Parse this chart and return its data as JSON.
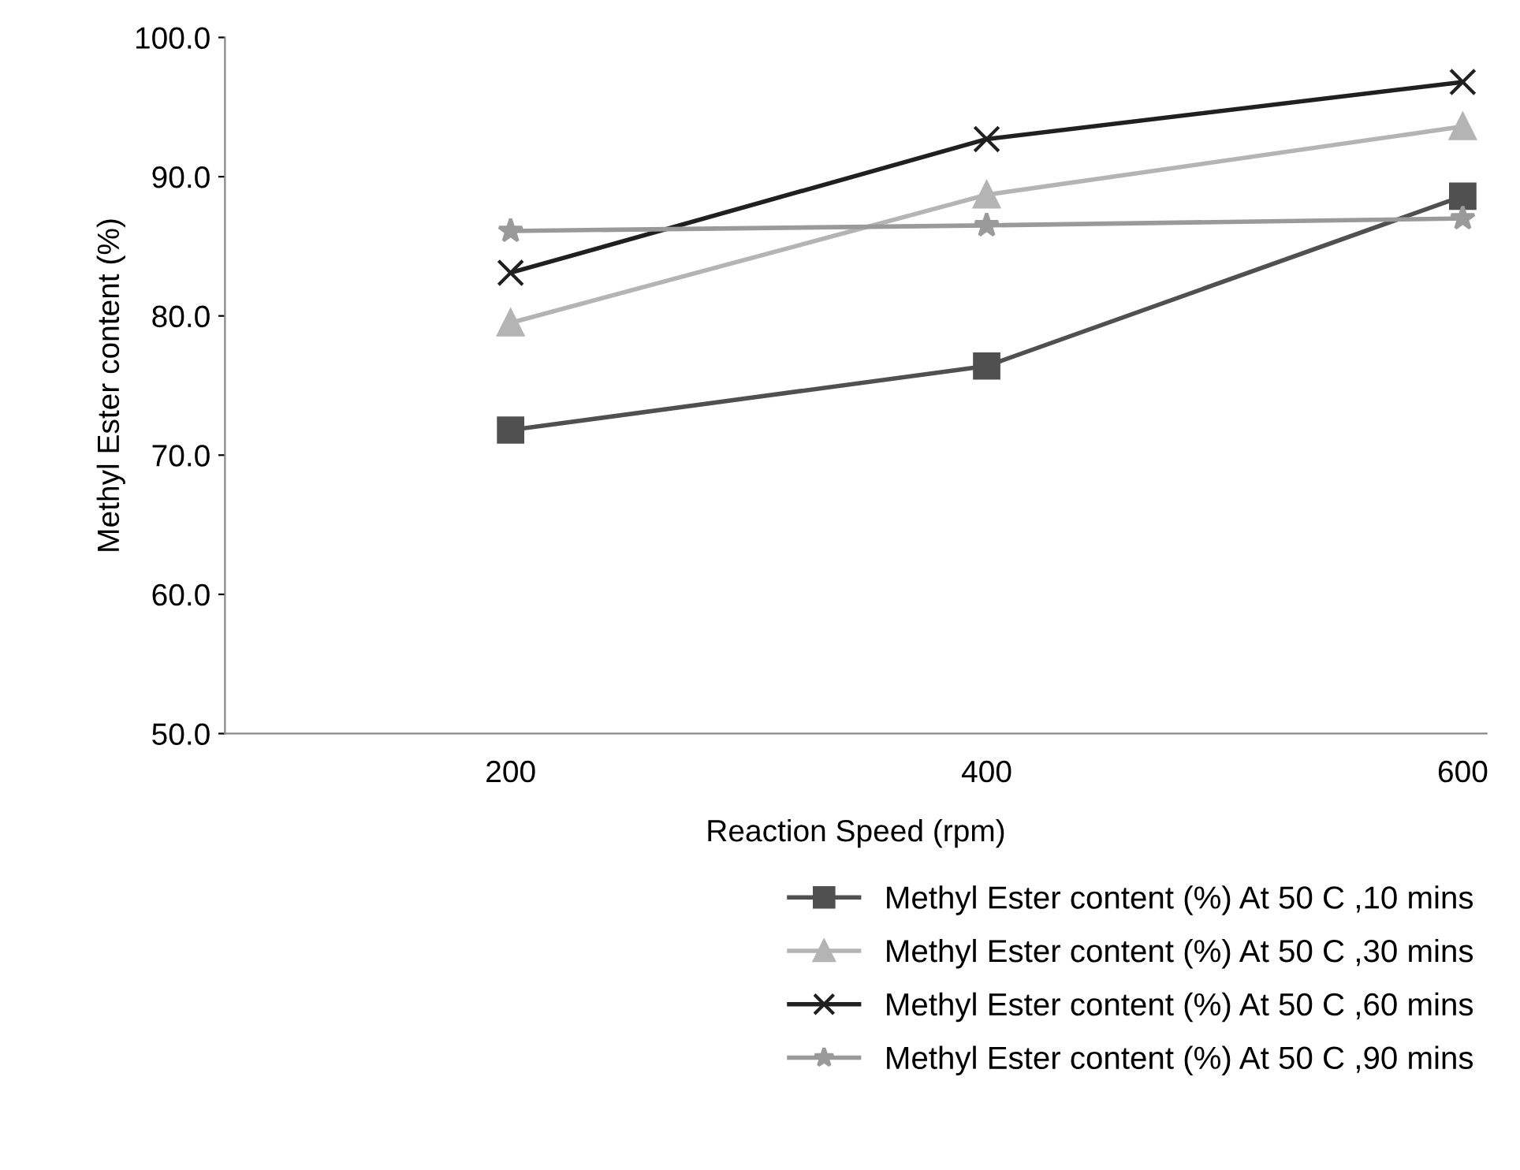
{
  "chart_data": {
    "type": "line",
    "xlabel": "Reaction Speed (rpm)",
    "ylabel": "Methyl Ester content (%)",
    "categories": [
      "200",
      "400",
      "600"
    ],
    "ylim": [
      50,
      100
    ],
    "yticks": [
      {
        "value": 50,
        "label": "50.0"
      },
      {
        "value": 60,
        "label": "60.0"
      },
      {
        "value": 70,
        "label": "70.0"
      },
      {
        "value": 80,
        "label": "80.0"
      },
      {
        "value": 90,
        "label": "90.0"
      },
      {
        "value": 100,
        "label": "100.0"
      }
    ],
    "grid": false,
    "legend": "bottom right",
    "line_style": "solid",
    "series": [
      {
        "name": "Methyl Ester content (%) At 50 C ,10 mins",
        "color": "#505050",
        "marker": "square",
        "values": [
          71.8,
          76.4,
          88.6
        ]
      },
      {
        "name": "Methyl Ester content (%) At 50 C ,30 mins",
        "color": "#b4b4b4",
        "marker": "triangle",
        "values": [
          79.5,
          88.7,
          93.6
        ]
      },
      {
        "name": "Methyl Ester content (%) At 50 C ,60 mins",
        "color": "#202020",
        "marker": "cross",
        "values": [
          83.1,
          92.7,
          96.8
        ]
      },
      {
        "name": "Methyl Ester content (%) At 50 C ,90 mins",
        "color": "#9a9a9a",
        "marker": "star",
        "values": [
          86.1,
          86.5,
          87.0
        ]
      }
    ]
  }
}
